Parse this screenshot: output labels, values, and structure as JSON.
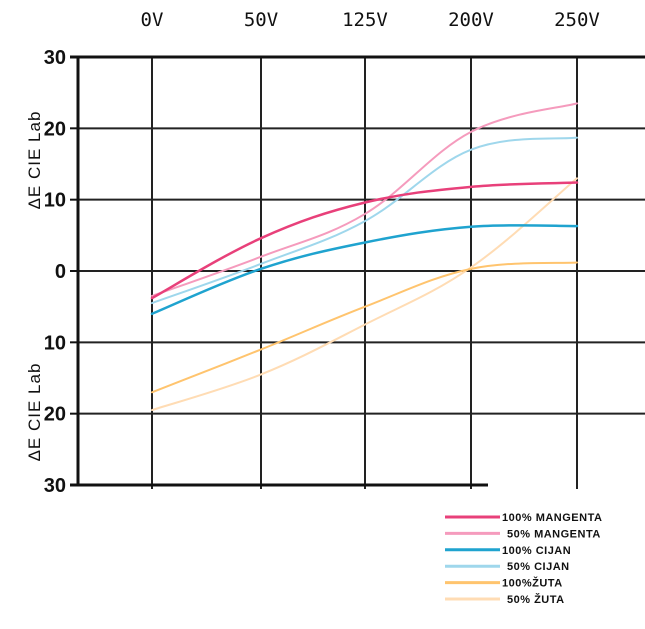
{
  "chart_data": {
    "type": "line",
    "x": [
      "0V",
      "50V",
      "125V",
      "200V",
      "250V"
    ],
    "ylabel_top": "ΔE CIE Lab",
    "ylabel_bottom": "ΔE CIE Lab",
    "ylim": [
      -30,
      30
    ],
    "yticks": [
      30,
      20,
      10,
      0,
      -10,
      -20,
      -30
    ],
    "ytick_labels": [
      "30",
      "20",
      "10",
      "0",
      "10",
      "20",
      "30"
    ],
    "grid": true,
    "legend_position": "bottom-right",
    "series": [
      {
        "name": "100% MANGENTA",
        "color": "#e8407a",
        "width": 2.5,
        "values": [
          -3.8,
          4.6,
          9.6,
          11.8,
          12.4
        ]
      },
      {
        "name": "50% MANGENTA",
        "color": "#f59bbd",
        "width": 2,
        "values": [
          -3.5,
          2.0,
          8.0,
          19.5,
          23.5
        ]
      },
      {
        "name": "100% CIJAN",
        "color": "#1fa3cf",
        "width": 2.5,
        "values": [
          -6.0,
          0.3,
          4.0,
          6.2,
          6.3
        ]
      },
      {
        "name": "50% CIJAN",
        "color": "#9fd7ec",
        "width": 2,
        "values": [
          -4.5,
          1.0,
          7.0,
          17.0,
          18.7
        ]
      },
      {
        "name": "100%ŽUTA",
        "color": "#ffc46e",
        "width": 2,
        "values": [
          -17.0,
          -11.0,
          -5.0,
          0.3,
          1.2
        ]
      },
      {
        "name": "50% ŽUTA",
        "color": "#ffdcb4",
        "width": 2,
        "values": [
          -19.5,
          -14.5,
          -7.5,
          0.5,
          13.0
        ]
      }
    ]
  }
}
